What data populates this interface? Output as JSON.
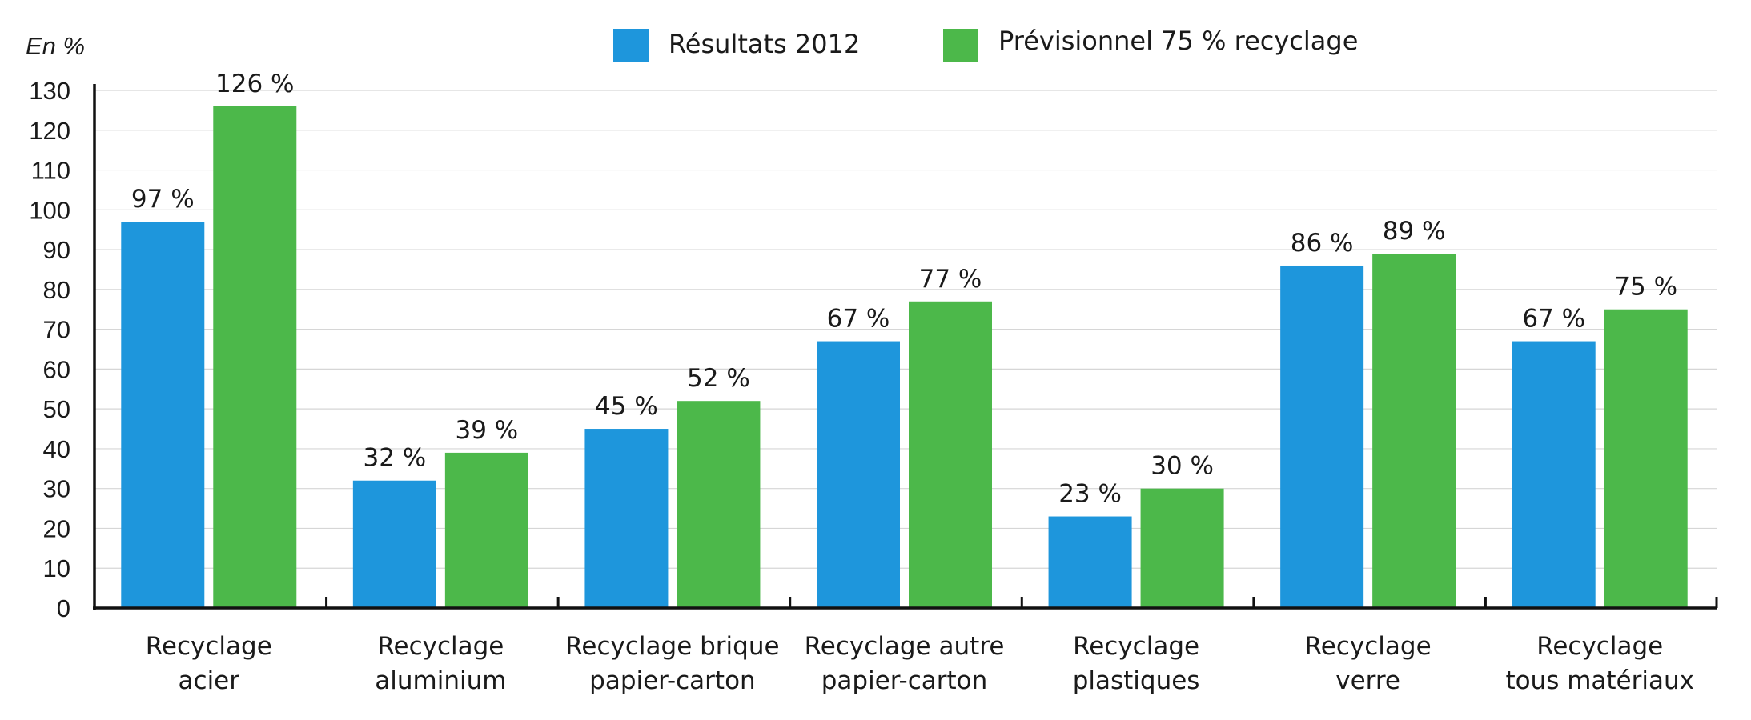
{
  "chart_data": {
    "type": "bar",
    "ylabel": "En %",
    "ylim": [
      0,
      130
    ],
    "yticks": [
      0,
      10,
      20,
      30,
      40,
      50,
      60,
      70,
      80,
      90,
      100,
      110,
      120,
      130
    ],
    "grid": true,
    "legend_position": "top-center",
    "categories": [
      [
        "Recyclage",
        "acier"
      ],
      [
        "Recyclage",
        "aluminium"
      ],
      [
        "Recyclage brique",
        "papier-carton"
      ],
      [
        "Recyclage autre",
        "papier-carton"
      ],
      [
        "Recyclage",
        "plastiques"
      ],
      [
        "Recyclage",
        "verre"
      ],
      [
        "Recyclage",
        "tous matériaux"
      ]
    ],
    "series": [
      {
        "name": "Résultats 2012",
        "color": "#1e96dc",
        "values": [
          97,
          32,
          45,
          67,
          23,
          86,
          67
        ],
        "labels": [
          "97 %",
          "32 %",
          "45 %",
          "67 %",
          "23 %",
          "86 %",
          "67 %"
        ]
      },
      {
        "name": "Prévisionnel 75 % recyclage",
        "color": "#4cb84a",
        "values": [
          126,
          39,
          52,
          77,
          30,
          89,
          75
        ],
        "labels": [
          "126 %",
          "39 %",
          "52 %",
          "77 %",
          "30 %",
          "89 %",
          "75 %"
        ]
      }
    ]
  }
}
